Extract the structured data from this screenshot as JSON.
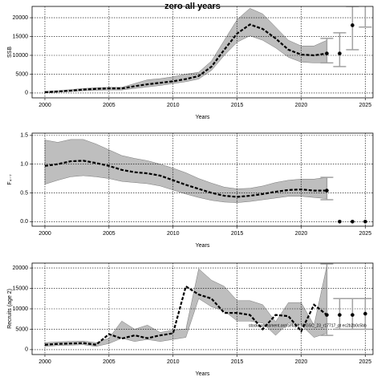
{
  "chart_data": [
    {
      "type": "line",
      "title": "zero all years",
      "xlabel": "Years",
      "ylabel": "SSB",
      "xlim": [
        1999,
        2025.6
      ],
      "ylim": [
        -1300,
        23000
      ],
      "xticks": [
        2000,
        2005,
        2010,
        2015,
        2020,
        2025
      ],
      "yticks": [
        0,
        5000,
        10000,
        15000,
        20000
      ],
      "grid": true,
      "band_color": "#bebebe",
      "color": "#000000",
      "error_color": "#a0a0a0",
      "x": [
        2000,
        2001,
        2002,
        2003,
        2004,
        2005,
        2006,
        2007,
        2008,
        2009,
        2010,
        2011,
        2012,
        2013,
        2014,
        2015,
        2016,
        2017,
        2018,
        2019,
        2020,
        2021,
        2022
      ],
      "values": [
        200,
        400,
        600,
        900,
        1100,
        1200,
        1200,
        1800,
        2300,
        2700,
        3100,
        3700,
        4500,
        7000,
        11500,
        15800,
        18200,
        17000,
        14500,
        11500,
        10200,
        10000,
        10500
      ],
      "lower": [
        0,
        200,
        400,
        600,
        700,
        800,
        800,
        1200,
        1600,
        2000,
        2500,
        3000,
        3700,
        6000,
        10000,
        13500,
        15200,
        14000,
        12000,
        9500,
        8200,
        8000,
        8000
      ],
      "upper": [
        400,
        600,
        900,
        1200,
        1400,
        1500,
        1500,
        2500,
        3500,
        3800,
        4300,
        5000,
        5500,
        8500,
        14000,
        19500,
        22500,
        21000,
        17500,
        14000,
        12500,
        12500,
        14000
      ],
      "forecast": {
        "x": [
          2022,
          2023,
          2024,
          2025
        ],
        "values": [
          10500,
          10500,
          18000,
          null
        ],
        "lower": [
          8000,
          7000,
          11500,
          17500
        ],
        "upper": [
          14500,
          16000,
          23000,
          30000
        ]
      }
    },
    {
      "type": "line",
      "xlabel": "Years",
      "ylabel": "F₄₋₇",
      "xlim": [
        1999,
        2025.6
      ],
      "ylim": [
        -0.08,
        1.54
      ],
      "xticks": [
        2000,
        2005,
        2010,
        2015,
        2020,
        2025
      ],
      "yticks": [
        {
          "value": 0,
          "label": "0.0"
        },
        {
          "value": 0.5,
          "label": "0.5"
        },
        {
          "value": 1,
          "label": "1.0"
        },
        {
          "value": 1.5,
          "label": "1.5"
        }
      ],
      "grid": true,
      "band_color": "#bebebe",
      "color": "#000000",
      "error_color": "#a0a0a0",
      "x": [
        2000,
        2001,
        2002,
        2003,
        2004,
        2005,
        2006,
        2007,
        2008,
        2009,
        2010,
        2011,
        2012,
        2013,
        2014,
        2015,
        2016,
        2017,
        2018,
        2019,
        2020,
        2021,
        2022
      ],
      "values": [
        0.97,
        1.0,
        1.05,
        1.06,
        1.02,
        0.97,
        0.9,
        0.86,
        0.84,
        0.8,
        0.72,
        0.64,
        0.57,
        0.5,
        0.45,
        0.43,
        0.45,
        0.48,
        0.52,
        0.55,
        0.56,
        0.54,
        0.54
      ],
      "lower": [
        0.65,
        0.72,
        0.78,
        0.8,
        0.78,
        0.75,
        0.7,
        0.68,
        0.66,
        0.62,
        0.55,
        0.48,
        0.42,
        0.37,
        0.34,
        0.33,
        0.35,
        0.38,
        0.41,
        0.44,
        0.44,
        0.42,
        0.4
      ],
      "upper": [
        1.42,
        1.38,
        1.43,
        1.43,
        1.35,
        1.25,
        1.15,
        1.1,
        1.06,
        1.0,
        0.93,
        0.85,
        0.75,
        0.67,
        0.6,
        0.57,
        0.58,
        0.62,
        0.68,
        0.72,
        0.74,
        0.74,
        0.77
      ],
      "forecast": {
        "x": [
          2022,
          2023,
          2024,
          2025
        ],
        "values": [
          0.54,
          0,
          0,
          0
        ],
        "lower": [
          0.38,
          null,
          null,
          null
        ],
        "upper": [
          0.77,
          null,
          null,
          null
        ]
      }
    },
    {
      "type": "line",
      "xlabel": "Years",
      "ylabel": "Recruits (age 2)",
      "xlim": [
        1999,
        2025.6
      ],
      "ylim": [
        -1200,
        21200
      ],
      "xticks": [
        2000,
        2005,
        2010,
        2015,
        2020,
        2025
      ],
      "yticks": [
        0,
        5000,
        10000,
        15000,
        20000
      ],
      "grid": true,
      "band_color": "#bebebe",
      "color": "#000000",
      "error_color": "#a0a0a0",
      "annotation": "stockassessment.org/setup/t_WGSC_23_r17717_pt ec2b2b0c5bb",
      "x": [
        2000,
        2001,
        2002,
        2003,
        2004,
        2005,
        2006,
        2007,
        2008,
        2009,
        2010,
        2011,
        2012,
        2013,
        2014,
        2015,
        2016,
        2017,
        2018,
        2019,
        2020,
        2021,
        2022
      ],
      "values": [
        1200,
        1400,
        1500,
        1600,
        1200,
        3800,
        2700,
        3500,
        2800,
        3500,
        4000,
        15500,
        13500,
        12500,
        9000,
        9000,
        8500,
        5000,
        8500,
        8200,
        4500,
        11000,
        8500
      ],
      "lower": [
        800,
        1000,
        1100,
        1200,
        800,
        1500,
        2800,
        2000,
        2500,
        2000,
        2500,
        3000,
        12500,
        10500,
        9500,
        7000,
        7000,
        6500,
        3500,
        6500,
        6000,
        3000,
        4000
      ],
      "upper": [
        1700,
        1900,
        2000,
        2100,
        1700,
        2800,
        7000,
        5000,
        6000,
        4200,
        4800,
        5000,
        19800,
        17000,
        15500,
        12000,
        12000,
        11000,
        6800,
        11500,
        11500,
        6000,
        20500
      ],
      "forecast": {
        "x": [
          2022,
          2023,
          2024,
          2025
        ],
        "values": [
          8500,
          8500,
          8500,
          8800
        ],
        "lower": [
          3500,
          5000,
          5000,
          5000
        ],
        "upper": [
          21000,
          12500,
          12500,
          12500
        ]
      }
    }
  ]
}
